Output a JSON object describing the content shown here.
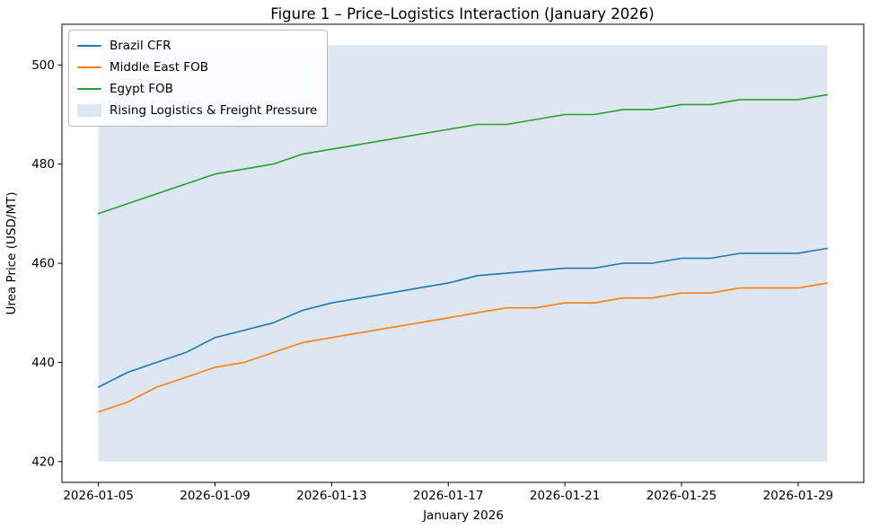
{
  "chart_data": {
    "type": "line",
    "title": "Figure 1 – Price–Logistics Interaction (January 2026)",
    "xlabel": "January 2026",
    "ylabel": "Urea Price (USD/MT)",
    "grid": false,
    "legend_position": "upper left",
    "xlim_days": [
      3.75,
      31.25
    ],
    "ylim": [
      415.8,
      508.2
    ],
    "x": [
      "2026-01-05",
      "2026-01-06",
      "2026-01-07",
      "2026-01-08",
      "2026-01-09",
      "2026-01-10",
      "2026-01-11",
      "2026-01-12",
      "2026-01-13",
      "2026-01-14",
      "2026-01-15",
      "2026-01-16",
      "2026-01-17",
      "2026-01-18",
      "2026-01-19",
      "2026-01-20",
      "2026-01-21",
      "2026-01-22",
      "2026-01-23",
      "2026-01-24",
      "2026-01-25",
      "2026-01-26",
      "2026-01-27",
      "2026-01-28",
      "2026-01-29",
      "2026-01-30"
    ],
    "series": [
      {
        "name": "Brazil CFR",
        "color": "#1f77b4",
        "values": [
          435,
          438,
          440,
          442,
          445,
          446.5,
          448,
          450.5,
          452,
          453,
          454,
          455,
          456,
          457.5,
          458,
          458.5,
          459,
          459,
          460,
          460,
          461,
          461,
          462,
          462,
          462,
          463
        ]
      },
      {
        "name": "Middle East FOB",
        "color": "#ff7f0e",
        "values": [
          430,
          432,
          435,
          437,
          439,
          440,
          442,
          444,
          445,
          446,
          447,
          448,
          449,
          450,
          451,
          451,
          452,
          452,
          453,
          453,
          454,
          454,
          455,
          455,
          455,
          456
        ]
      },
      {
        "name": "Egypt FOB",
        "color": "#2ca02c",
        "values": [
          470,
          472,
          474,
          476,
          478,
          479,
          480,
          482,
          483,
          484,
          485,
          486,
          487,
          488,
          488,
          489,
          490,
          490,
          491,
          491,
          492,
          492,
          493,
          493,
          493,
          494
        ]
      }
    ],
    "band": {
      "label": "Rising Logistics & Freight Pressure",
      "color": "#dce7f2",
      "x_start": "2026-01-05",
      "x_end": "2026-01-30",
      "y_start": 420,
      "y_end": 504
    },
    "x_tick_labels": [
      "2026-01-05",
      "2026-01-09",
      "2026-01-13",
      "2026-01-17",
      "2026-01-21",
      "2026-01-25",
      "2026-01-29"
    ],
    "y_tick_labels": [
      420,
      440,
      460,
      480,
      500
    ]
  }
}
